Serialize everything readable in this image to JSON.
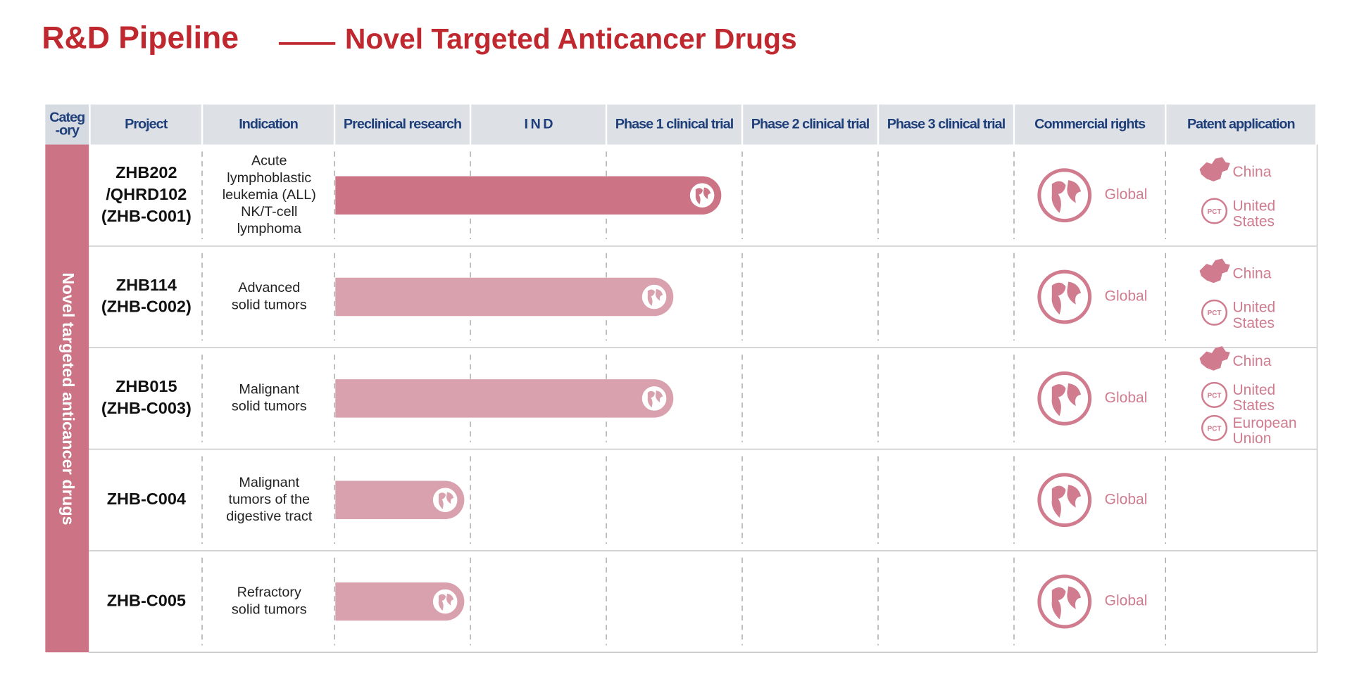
{
  "title": {
    "main": "R&D Pipeline",
    "sub": "Novel Targeted Anticancer Drugs"
  },
  "headers": [
    [
      "Categ",
      "-ory"
    ],
    [
      "Project"
    ],
    [
      "Indication"
    ],
    [
      "Preclinical research"
    ],
    [
      "I N D"
    ],
    [
      "Phase 1 clinical trial"
    ],
    [
      "Phase 2 clinical trial"
    ],
    [
      "Phase 3 clinical trial"
    ],
    [
      "Commercial rights"
    ],
    [
      "Patent application"
    ]
  ],
  "category": "Novel targeted anticancer drugs",
  "rows": [
    {
      "project": [
        "ZHB202",
        "/QHRD102",
        "(ZHB-C001)"
      ],
      "indication": [
        "Acute",
        "lymphoblastic",
        "leukemia (ALL)",
        "NK/T-cell",
        "lymphoma"
      ],
      "rights": "Global",
      "patents": [
        {
          "lines": [
            "China"
          ]
        },
        {
          "mark": "PCT",
          "lines": [
            "United",
            "States"
          ]
        }
      ]
    },
    {
      "project": [
        "ZHB114",
        "(ZHB-C002)"
      ],
      "indication": [
        "Advanced",
        "solid tumors"
      ],
      "rights": "Global",
      "patents": [
        {
          "lines": [
            "China"
          ]
        },
        {
          "mark": "PCT",
          "lines": [
            "United",
            "States"
          ]
        }
      ]
    },
    {
      "project": [
        "ZHB015",
        "(ZHB-C003)"
      ],
      "indication": [
        "Malignant",
        "solid tumors"
      ],
      "rights": "Global",
      "patents": [
        {
          "lines": [
            "China"
          ]
        },
        {
          "mark": "PCT",
          "lines": [
            "United",
            "States"
          ]
        },
        {
          "mark": "PCT",
          "lines": [
            "European",
            "Union"
          ]
        }
      ]
    },
    {
      "project": [
        "ZHB-C004"
      ],
      "indication": [
        "Malignant",
        "tumors of the",
        "digestive tract"
      ],
      "rights": "Global",
      "patents": []
    },
    {
      "project": [
        "ZHB-C005"
      ],
      "indication": [
        "Refractory",
        "solid tumors"
      ],
      "rights": "Global",
      "patents": []
    }
  ]
}
